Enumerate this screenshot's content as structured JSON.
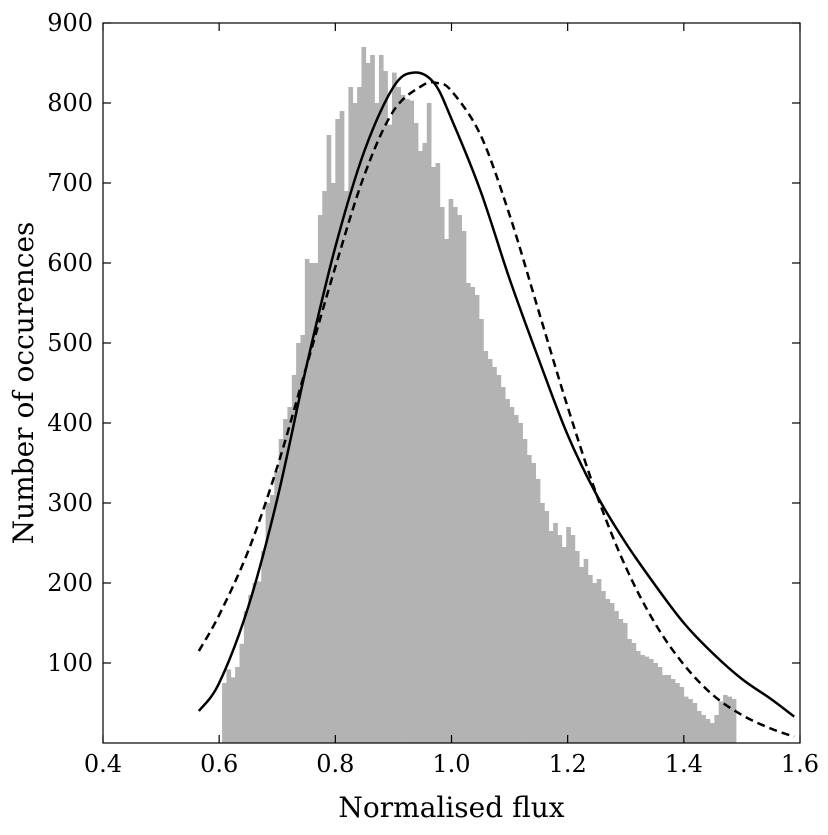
{
  "chart_data": {
    "type": "histogram",
    "title": "",
    "xlabel": "Normalised flux",
    "ylabel": "Number of occurences",
    "xlim": [
      0.4,
      1.6
    ],
    "ylim": [
      0,
      900
    ],
    "x_ticks": [
      0.4,
      0.6,
      0.8,
      1.0,
      1.2,
      1.4,
      1.6
    ],
    "x_tick_labels": [
      "0.4",
      "0.6",
      "0.8",
      "1.0",
      "1.2",
      "1.4",
      "1.6"
    ],
    "y_ticks": [
      100,
      200,
      300,
      400,
      500,
      600,
      700,
      800,
      900
    ],
    "y_tick_labels": [
      "100",
      "200",
      "300",
      "400",
      "500",
      "600",
      "700",
      "800",
      "900"
    ],
    "grid": false,
    "histogram": {
      "color": "#b3b3b3",
      "bin_start": 0.605,
      "bin_width": 0.0075,
      "counts": [
        75,
        92,
        82,
        95,
        124,
        165,
        185,
        200,
        202,
        240,
        300,
        310,
        340,
        380,
        405,
        420,
        460,
        500,
        510,
        605,
        600,
        600,
        660,
        690,
        760,
        700,
        780,
        790,
        690,
        820,
        800,
        820,
        870,
        850,
        860,
        800,
        860,
        840,
        773,
        838,
        820,
        810,
        805,
        803,
        775,
        740,
        750,
        800,
        720,
        725,
        670,
        630,
        680,
        670,
        660,
        640,
        575,
        570,
        560,
        530,
        490,
        480,
        470,
        460,
        445,
        430,
        420,
        410,
        400,
        380,
        360,
        350,
        330,
        300,
        290,
        265,
        275,
        260,
        245,
        270,
        260,
        240,
        220,
        230,
        210,
        200,
        205,
        190,
        180,
        175,
        165,
        155,
        150,
        130,
        125,
        115,
        110,
        108,
        105,
        100,
        95,
        85,
        85,
        80,
        75,
        70,
        58,
        55,
        50,
        40,
        35,
        30,
        25,
        35,
        52,
        60,
        58,
        55
      ]
    },
    "series": [
      {
        "line_style": "solid",
        "color": "#000000",
        "x": [
          0.565,
          0.6,
          0.65,
          0.7,
          0.75,
          0.8,
          0.85,
          0.9,
          0.935,
          0.97,
          1.0,
          1.05,
          1.1,
          1.15,
          1.2,
          1.25,
          1.3,
          1.35,
          1.4,
          1.45,
          1.5,
          1.55,
          1.59
        ],
        "y": [
          40,
          75,
          170,
          305,
          470,
          620,
          740,
          820,
          838,
          825,
          780,
          690,
          580,
          480,
          385,
          310,
          250,
          198,
          150,
          112,
          80,
          55,
          33
        ]
      },
      {
        "line_style": "dashed",
        "color": "#000000",
        "x": [
          0.565,
          0.6,
          0.65,
          0.7,
          0.75,
          0.8,
          0.85,
          0.9,
          0.95,
          0.975,
          1.0,
          1.05,
          1.1,
          1.15,
          1.2,
          1.25,
          1.3,
          1.35,
          1.4,
          1.45,
          1.5,
          1.55,
          1.59
        ],
        "y": [
          115,
          160,
          240,
          345,
          470,
          595,
          710,
          790,
          822,
          825,
          815,
          760,
          660,
          540,
          420,
          310,
          220,
          150,
          98,
          60,
          35,
          18,
          8
        ]
      }
    ]
  }
}
